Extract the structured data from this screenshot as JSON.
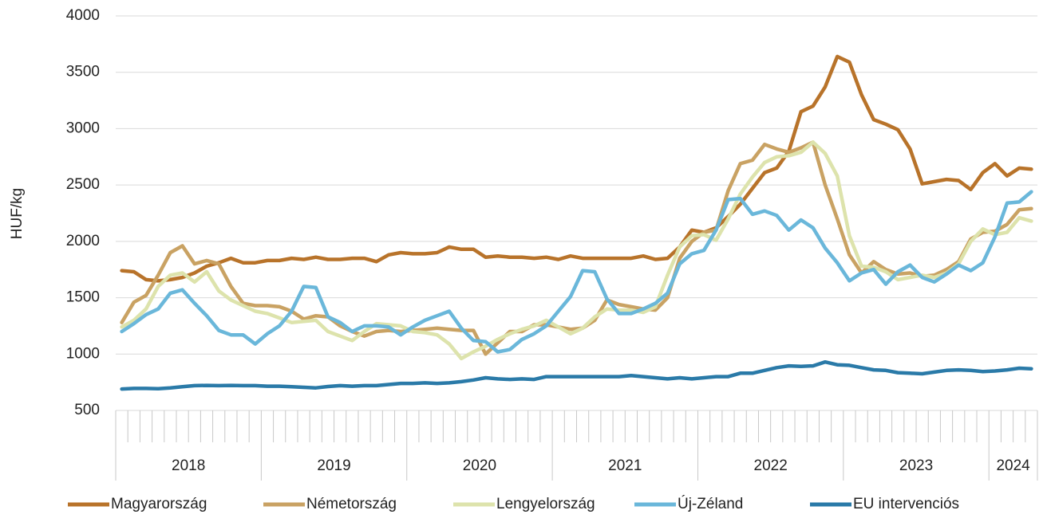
{
  "chart_data": {
    "type": "line",
    "y_label": "HUF/kg",
    "categories": [
      null,
      null,
      null,
      null,
      null,
      null,
      null,
      null,
      null,
      null,
      null,
      null,
      null,
      null,
      null,
      null,
      null,
      null,
      null,
      null,
      null,
      null,
      null,
      null,
      null,
      null,
      null,
      null,
      null,
      null,
      null,
      null,
      null,
      null,
      null,
      null,
      null,
      null,
      null,
      null,
      null,
      null,
      null,
      null,
      null,
      null,
      null,
      null,
      null,
      null,
      null,
      null,
      null,
      null,
      null,
      null,
      null,
      null,
      null,
      null,
      null,
      null,
      null,
      null,
      null,
      null,
      null,
      null,
      null,
      null,
      null,
      null,
      null,
      null,
      null,
      null
    ],
    "year_groups": [
      "2018",
      "2019",
      "2020",
      "2021",
      "2022",
      "2023",
      "2024"
    ],
    "ylim": [
      500,
      4000
    ],
    "yticks": [
      500,
      1000,
      1500,
      2000,
      2500,
      3000,
      3500,
      4000
    ],
    "grid": true,
    "legend": "bottom",
    "series": [
      {
        "name": "Magyarország",
        "color": "#b8732a",
        "values": [
          1740,
          1730,
          1660,
          1650,
          1660,
          1680,
          1720,
          1780,
          1810,
          1850,
          1810,
          1810,
          1830,
          1830,
          1850,
          1840,
          1860,
          1840,
          1840,
          1850,
          1850,
          1820,
          1880,
          1900,
          1890,
          1890,
          1900,
          1950,
          1930,
          1930,
          1860,
          1870,
          1860,
          1860,
          1850,
          1860,
          1840,
          1870,
          1850,
          1850,
          1850,
          1850,
          1850,
          1870,
          1840,
          1850,
          1950,
          2100,
          2080,
          2120,
          2220,
          2330,
          2470,
          2610,
          2650,
          2800,
          3150,
          3200,
          3370,
          3640,
          3590,
          3300,
          3080,
          3040,
          2990,
          2820,
          2510,
          2530,
          2550,
          2540,
          2460,
          2610,
          2690,
          2580,
          2650,
          2640
        ]
      },
      {
        "name": "Németország",
        "color": "#c9a263",
        "values": [
          1280,
          1460,
          1520,
          1700,
          1900,
          1960,
          1800,
          1830,
          1800,
          1600,
          1450,
          1430,
          1430,
          1420,
          1380,
          1310,
          1340,
          1330,
          1250,
          1200,
          1160,
          1200,
          1210,
          1200,
          1210,
          1220,
          1230,
          1220,
          1210,
          1210,
          1000,
          1100,
          1200,
          1200,
          1260,
          1260,
          1240,
          1220,
          1230,
          1300,
          1480,
          1440,
          1420,
          1400,
          1390,
          1500,
          1850,
          2000,
          2080,
          2100,
          2450,
          2690,
          2720,
          2860,
          2820,
          2790,
          2830,
          2880,
          2500,
          2200,
          1880,
          1720,
          1820,
          1750,
          1710,
          1720,
          1690,
          1700,
          1750,
          1820,
          2020,
          2080,
          2090,
          2150,
          2280,
          2290
        ]
      },
      {
        "name": "Lengyelország",
        "color": "#dde3ac",
        "values": [
          1240,
          1300,
          1400,
          1600,
          1700,
          1720,
          1640,
          1730,
          1560,
          1480,
          1430,
          1380,
          1360,
          1320,
          1280,
          1290,
          1300,
          1200,
          1160,
          1120,
          1200,
          1270,
          1260,
          1250,
          1200,
          1190,
          1170,
          1090,
          960,
          1020,
          1070,
          1130,
          1180,
          1220,
          1250,
          1300,
          1240,
          1180,
          1230,
          1330,
          1400,
          1390,
          1390,
          1370,
          1420,
          1700,
          1950,
          2050,
          2060,
          2010,
          2200,
          2420,
          2570,
          2700,
          2750,
          2760,
          2790,
          2880,
          2780,
          2580,
          2050,
          1780,
          1770,
          1730,
          1660,
          1680,
          1700,
          1680,
          1720,
          1800,
          2000,
          2110,
          2060,
          2080,
          2210,
          2180
        ]
      },
      {
        "name": "Új-Zéland",
        "color": "#6ab7da",
        "values": [
          1200,
          1270,
          1350,
          1400,
          1540,
          1570,
          1450,
          1340,
          1210,
          1170,
          1170,
          1090,
          1180,
          1250,
          1380,
          1600,
          1590,
          1330,
          1280,
          1200,
          1250,
          1250,
          1240,
          1170,
          1240,
          1300,
          1340,
          1380,
          1230,
          1120,
          1110,
          1020,
          1040,
          1130,
          1180,
          1250,
          1380,
          1510,
          1740,
          1730,
          1490,
          1360,
          1360,
          1400,
          1450,
          1540,
          1800,
          1890,
          1920,
          2100,
          2370,
          2380,
          2240,
          2270,
          2230,
          2100,
          2190,
          2120,
          1940,
          1810,
          1650,
          1720,
          1750,
          1620,
          1730,
          1790,
          1680,
          1640,
          1710,
          1790,
          1740,
          1810,
          2040,
          2340,
          2350,
          2440
        ]
      },
      {
        "name": "EU intervenciós",
        "color": "#2a7aa8",
        "values": [
          690,
          695,
          695,
          693,
          700,
          710,
          720,
          722,
          720,
          722,
          720,
          720,
          715,
          715,
          710,
          705,
          700,
          712,
          720,
          715,
          720,
          720,
          730,
          740,
          740,
          745,
          740,
          745,
          755,
          770,
          790,
          780,
          775,
          780,
          775,
          800,
          800,
          800,
          800,
          800,
          800,
          800,
          810,
          800,
          790,
          780,
          790,
          780,
          790,
          800,
          800,
          830,
          830,
          855,
          880,
          895,
          890,
          895,
          930,
          905,
          900,
          880,
          860,
          855,
          835,
          830,
          825,
          840,
          855,
          860,
          855,
          845,
          850,
          860,
          875,
          870
        ]
      }
    ]
  }
}
